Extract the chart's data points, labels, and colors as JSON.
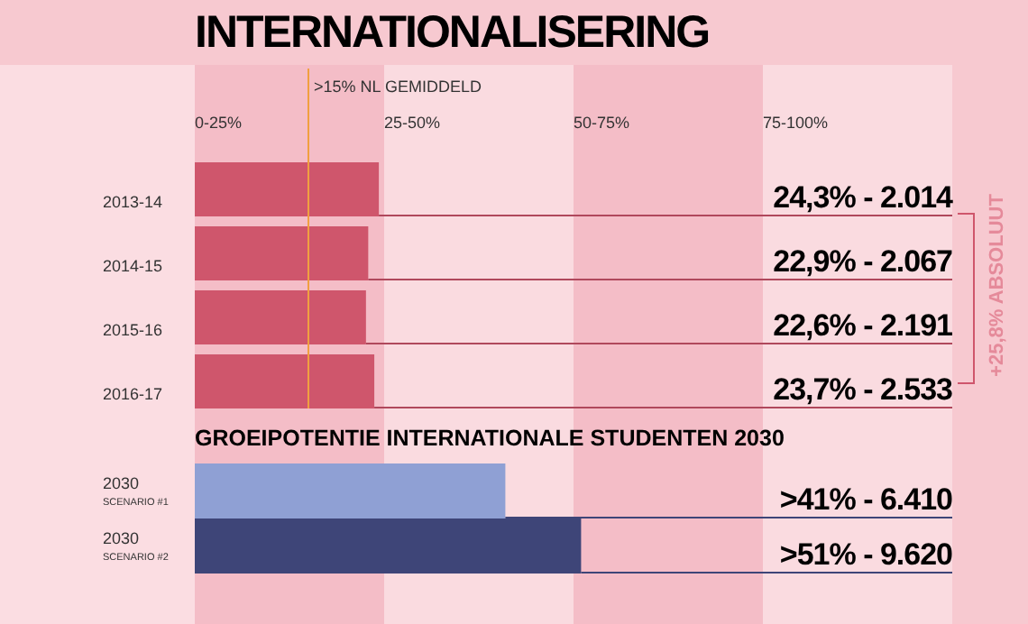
{
  "chart_data": {
    "type": "bar",
    "orientation": "horizontal",
    "title": "INTERNATIONALISERING",
    "categories": [
      "2013-14",
      "2014-15",
      "2015-16",
      "2016-17",
      "2030$_{SCENARIO #1}$",
      "2030$_{SCENARIO #2}$"
    ],
    "values": [
      24.3,
      22.9,
      22.6,
      23.7,
      41,
      51
    ],
    "colors": [
      "#cf566c",
      "#cf566c",
      "#cf566c",
      "#cf566c",
      "#8fa0d4",
      "#3e4578"
    ],
    "value_labels": [
      "24,3% - 2.014",
      "22,9% - 2.067",
      "22,6% - 2.191",
      "23,7% - 2.533",
      ">41% - 6.410",
      ">51% - 9.620"
    ],
    "xlim": [
      0,
      100
    ],
    "bands": [
      {
        "axis": "x",
        "from": 0,
        "to": 25,
        "label": "0-25%",
        "color": "#f4bdc7"
      },
      {
        "axis": "x",
        "from": 25,
        "to": 50,
        "label": "25-50%",
        "color": "#fadbe0"
      },
      {
        "axis": "x",
        "from": 50,
        "to": 75,
        "label": "50-75%",
        "color": "#f4bdc7"
      },
      {
        "axis": "x",
        "from": 75,
        "to": 100,
        "label": "75-100%",
        "color": "#fadbe0"
      }
    ],
    "ref_lines": [
      {
        "axis": "x",
        "value": 15,
        "label": ">15% NL GEMIDDELD",
        "color": "#f0a040"
      }
    ],
    "annotations": [
      "+25,8% ABSOLUUT",
      "GROEIPOTENTIE INTERNATIONALE STUDENTEN 2030"
    ]
  }
}
